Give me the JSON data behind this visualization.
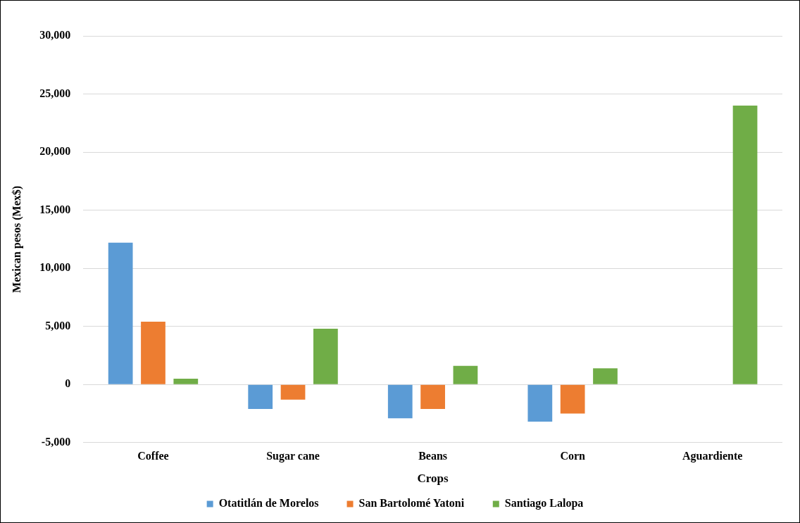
{
  "chart_data": {
    "type": "bar",
    "xlabel": "Crops",
    "ylabel": "Mexican pesos (Mex$)",
    "categories": [
      "Coffee",
      "Sugar cane",
      "Beans",
      "Corn",
      "Aguardiente"
    ],
    "series": [
      {
        "name": "Otatitlán de Morelos",
        "color": "#5b9bd5",
        "values": [
          12200,
          -2100,
          -2900,
          -3200,
          null
        ]
      },
      {
        "name": "San Bartolomé Yatoni",
        "color": "#ed7d31",
        "values": [
          5400,
          -1300,
          -2100,
          -2500,
          null
        ]
      },
      {
        "name": "Santiago Lalopa",
        "color": "#70ad47",
        "values": [
          500,
          4800,
          1600,
          1400,
          24000
        ]
      }
    ],
    "ylim": [
      -5000,
      30000
    ],
    "yticks": [
      {
        "value": -5000,
        "label": "-5,000"
      },
      0,
      {
        "value": 5000,
        "label": "5,000"
      },
      {
        "value": 10000,
        "label": "10,000"
      },
      {
        "value": 15000,
        "label": "15,000"
      },
      {
        "value": 20000,
        "label": "20,000"
      },
      {
        "value": 25000,
        "label": "25,000"
      },
      {
        "value": 30000,
        "label": "30,000"
      }
    ],
    "grid": "y",
    "legend": "bottom"
  }
}
